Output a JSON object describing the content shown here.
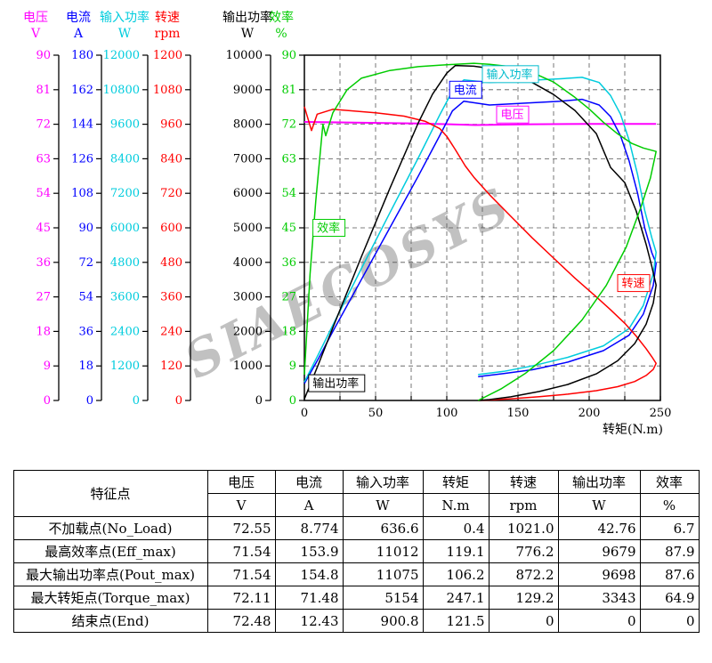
{
  "watermark": "SIAECOSYS",
  "chart_data": {
    "type": "line",
    "title": "",
    "xlabel": "转矩(N.m)",
    "x_range": [
      0,
      250
    ],
    "x_major_ticks": [
      0,
      50,
      100,
      150,
      200,
      250
    ],
    "x_minor_step": 25,
    "grid": "dashed",
    "legend_position": "inline-boxed-labels",
    "axes": [
      {
        "name": "电压",
        "unit": "V",
        "color": "#FF00FF",
        "max": 90,
        "ticks": [
          0,
          9,
          18,
          27,
          36,
          45,
          54,
          63,
          72,
          81,
          90
        ]
      },
      {
        "name": "电流",
        "unit": "A",
        "color": "#0000FF",
        "max": 180,
        "ticks": [
          0,
          18,
          36,
          54,
          72,
          90,
          108,
          126,
          144,
          162,
          180
        ]
      },
      {
        "name": "输入功率",
        "unit": "W",
        "color": "#00CCDD",
        "max": 12000,
        "ticks": [
          0,
          1200,
          2400,
          3600,
          4800,
          6000,
          7200,
          8400,
          9600,
          10800,
          12000
        ]
      },
      {
        "name": "转速",
        "unit": "rpm",
        "color": "#FF0000",
        "max": 1200,
        "ticks": [
          0,
          120,
          240,
          360,
          480,
          600,
          720,
          840,
          960,
          1080,
          1200
        ]
      },
      {
        "name": "输出功率",
        "unit": "W",
        "color": "#000000",
        "max": 10000,
        "ticks": [
          0,
          1000,
          2000,
          3000,
          4000,
          5000,
          6000,
          7000,
          8000,
          9000,
          10000
        ]
      },
      {
        "name": "效率",
        "unit": "%",
        "color": "#00CC00",
        "max": 90,
        "ticks": [
          0,
          9,
          18,
          27,
          36,
          45,
          54,
          63,
          72,
          81,
          90
        ]
      }
    ],
    "series": [
      {
        "id": "voltage",
        "name": "电压",
        "axis": 0,
        "color": "#FF00FF",
        "width": 2,
        "points": [
          [
            0,
            72.6
          ],
          [
            40,
            72.4
          ],
          [
            80,
            72.2
          ],
          [
            120,
            71.8
          ],
          [
            160,
            72.0
          ],
          [
            200,
            72.1
          ],
          [
            247,
            72.1
          ]
        ]
      },
      {
        "id": "current",
        "name": "电流",
        "axis": 1,
        "color": "#0000FF",
        "width": 1.5,
        "points": [
          [
            0,
            8.8
          ],
          [
            10,
            22
          ],
          [
            20,
            36
          ],
          [
            40,
            63
          ],
          [
            60,
            90
          ],
          [
            80,
            117
          ],
          [
            95,
            138
          ],
          [
            104,
            151
          ],
          [
            112,
            156
          ],
          [
            130,
            154
          ],
          [
            155,
            155
          ],
          [
            180,
            156
          ],
          [
            195,
            157
          ],
          [
            207,
            154
          ],
          [
            215,
            148
          ],
          [
            222,
            138
          ],
          [
            228,
            125
          ],
          [
            234,
            108
          ],
          [
            239,
            90
          ],
          [
            244,
            77
          ],
          [
            247,
            71.5
          ],
          [
            245,
            60
          ],
          [
            238,
            45
          ],
          [
            228,
            34
          ],
          [
            210,
            26
          ],
          [
            185,
            20
          ],
          [
            160,
            16
          ],
          [
            140,
            14
          ],
          [
            122,
            12.4
          ]
        ]
      },
      {
        "id": "input-power",
        "name": "输入功率",
        "axis": 2,
        "color": "#00CCDD",
        "width": 1.5,
        "points": [
          [
            0,
            640
          ],
          [
            10,
            1620
          ],
          [
            20,
            2620
          ],
          [
            40,
            4580
          ],
          [
            60,
            6520
          ],
          [
            80,
            8430
          ],
          [
            95,
            9920
          ],
          [
            104,
            10760
          ],
          [
            112,
            11140
          ],
          [
            130,
            11050
          ],
          [
            155,
            11120
          ],
          [
            180,
            11180
          ],
          [
            195,
            11230
          ],
          [
            207,
            11050
          ],
          [
            215,
            10600
          ],
          [
            222,
            9950
          ],
          [
            228,
            9050
          ],
          [
            234,
            7850
          ],
          [
            239,
            6600
          ],
          [
            244,
            5650
          ],
          [
            247,
            5150
          ],
          [
            245,
            4400
          ],
          [
            238,
            3300
          ],
          [
            228,
            2500
          ],
          [
            210,
            1900
          ],
          [
            185,
            1500
          ],
          [
            160,
            1200
          ],
          [
            140,
            1010
          ],
          [
            122,
            900
          ]
        ]
      },
      {
        "id": "speed",
        "name": "转速",
        "axis": 3,
        "color": "#FF0000",
        "width": 1.5,
        "points": [
          [
            0,
            1021
          ],
          [
            5,
            938
          ],
          [
            9,
            995
          ],
          [
            20,
            1012
          ],
          [
            50,
            1000
          ],
          [
            70,
            988
          ],
          [
            85,
            970
          ],
          [
            95,
            945
          ],
          [
            100,
            918
          ],
          [
            106,
            872
          ],
          [
            113,
            815
          ],
          [
            119,
            776
          ],
          [
            130,
            715
          ],
          [
            145,
            640
          ],
          [
            160,
            565
          ],
          [
            175,
            495
          ],
          [
            190,
            425
          ],
          [
            205,
            360
          ],
          [
            215,
            315
          ],
          [
            225,
            268
          ],
          [
            233,
            224
          ],
          [
            240,
            180
          ],
          [
            244,
            152
          ],
          [
            247,
            129
          ],
          [
            245,
            108
          ],
          [
            240,
            87
          ],
          [
            232,
            66
          ],
          [
            220,
            48
          ],
          [
            205,
            34
          ],
          [
            185,
            22
          ],
          [
            165,
            13
          ],
          [
            145,
            6
          ],
          [
            130,
            2
          ],
          [
            122,
            0
          ]
        ]
      },
      {
        "id": "output-power",
        "name": "输出功率",
        "axis": 4,
        "color": "#000000",
        "width": 1.5,
        "points": [
          [
            0,
            43
          ],
          [
            10,
            1060
          ],
          [
            20,
            2110
          ],
          [
            40,
            4160
          ],
          [
            60,
            6140
          ],
          [
            80,
            8040
          ],
          [
            90,
            8870
          ],
          [
            100,
            9480
          ],
          [
            106,
            9700
          ],
          [
            119,
            9680
          ],
          [
            130,
            9620
          ],
          [
            145,
            9470
          ],
          [
            160,
            9210
          ],
          [
            175,
            8860
          ],
          [
            190,
            8400
          ],
          [
            205,
            7730
          ],
          [
            215,
            6750
          ],
          [
            225,
            6310
          ],
          [
            233,
            5490
          ],
          [
            240,
            4520
          ],
          [
            244,
            3880
          ],
          [
            247,
            3340
          ],
          [
            245,
            2820
          ],
          [
            240,
            2210
          ],
          [
            232,
            1650
          ],
          [
            220,
            1150
          ],
          [
            205,
            770
          ],
          [
            185,
            465
          ],
          [
            165,
            260
          ],
          [
            145,
            105
          ],
          [
            130,
            27
          ],
          [
            122,
            0
          ]
        ]
      },
      {
        "id": "efficiency",
        "name": "效率",
        "axis": 5,
        "color": "#00CC00",
        "width": 1.5,
        "points": [
          [
            0,
            6.7
          ],
          [
            4,
            33
          ],
          [
            8,
            52
          ],
          [
            11,
            64
          ],
          [
            13,
            72
          ],
          [
            15,
            69
          ],
          [
            20,
            75
          ],
          [
            30,
            81
          ],
          [
            40,
            84
          ],
          [
            60,
            86
          ],
          [
            80,
            87
          ],
          [
            95,
            87.4
          ],
          [
            106,
            87.6
          ],
          [
            119,
            87.9
          ],
          [
            130,
            87.6
          ],
          [
            145,
            87
          ],
          [
            160,
            85.5
          ],
          [
            175,
            83
          ],
          [
            190,
            79
          ],
          [
            200,
            76
          ],
          [
            210,
            72.5
          ],
          [
            220,
            69.5
          ],
          [
            230,
            67
          ],
          [
            238,
            65.8
          ],
          [
            247,
            64.9
          ],
          [
            243,
            58
          ],
          [
            236,
            50
          ],
          [
            226,
            40
          ],
          [
            212,
            30
          ],
          [
            195,
            21
          ],
          [
            175,
            13
          ],
          [
            155,
            7
          ],
          [
            138,
            3
          ],
          [
            122,
            0
          ]
        ]
      }
    ],
    "curve_labels": [
      {
        "text": "输入功率",
        "color": "#00BBCC",
        "x": 125,
        "fy": 0.945
      },
      {
        "text": "电流",
        "color": "#0000FF",
        "x": 102,
        "fy": 0.9
      },
      {
        "text": "电压",
        "color": "#FF00FF",
        "x": 135,
        "fy": 0.828
      },
      {
        "text": "效率",
        "color": "#00CC00",
        "x": 6,
        "fy": 0.5
      },
      {
        "text": "转速",
        "color": "#FF0000",
        "x": 220,
        "fy": 0.34
      },
      {
        "text": "输出功率",
        "color": "#000000",
        "x": 3,
        "fy": 0.05
      }
    ]
  },
  "table": {
    "corner_label": "特征点",
    "columns": [
      {
        "name": "电压",
        "unit": "V"
      },
      {
        "name": "电流",
        "unit": "A"
      },
      {
        "name": "输入功率",
        "unit": "W"
      },
      {
        "name": "转矩",
        "unit": "N.m"
      },
      {
        "name": "转速",
        "unit": "rpm"
      },
      {
        "name": "输出功率",
        "unit": "W"
      },
      {
        "name": "效率",
        "unit": "%"
      }
    ],
    "rows": [
      {
        "label": "不加载点(No_Load)",
        "values": [
          "72.55",
          "8.774",
          "636.6",
          "0.4",
          "1021.0",
          "42.76",
          "6.7"
        ]
      },
      {
        "label": "最高效率点(Eff_max)",
        "values": [
          "71.54",
          "153.9",
          "11012",
          "119.1",
          "776.2",
          "9679",
          "87.9"
        ]
      },
      {
        "label": "最大输出功率点(Pout_max)",
        "values": [
          "71.54",
          "154.8",
          "11075",
          "106.2",
          "872.2",
          "9698",
          "87.6"
        ]
      },
      {
        "label": "最大转矩点(Torque_max)",
        "values": [
          "72.11",
          "71.48",
          "5154",
          "247.1",
          "129.2",
          "3343",
          "64.9"
        ]
      },
      {
        "label": "结束点(End)",
        "values": [
          "72.48",
          "12.43",
          "900.8",
          "121.5",
          "0",
          "0",
          "0"
        ]
      }
    ]
  }
}
